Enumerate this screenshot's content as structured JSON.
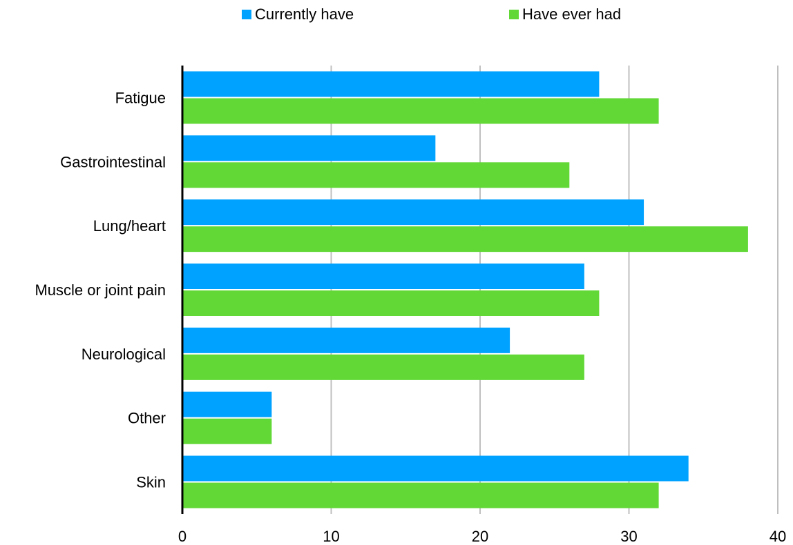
{
  "chart_data": {
    "type": "bar",
    "orientation": "horizontal",
    "title": "",
    "xlabel": "",
    "ylabel": "",
    "categories": [
      "Fatigue",
      "Gastrointestinal",
      "Lung/heart",
      "Muscle or joint pain",
      "Neurological",
      "Other",
      "Skin"
    ],
    "series": [
      {
        "name": "Currently have",
        "color": "#00a2ff",
        "values": [
          28,
          17,
          31,
          27,
          22,
          6,
          34
        ]
      },
      {
        "name": "Have ever had",
        "color": "#61d836",
        "values": [
          32,
          26,
          38,
          28,
          27,
          6,
          32
        ]
      }
    ],
    "xlim": [
      0,
      40
    ],
    "xticks": [
      0,
      10,
      20,
      30,
      40
    ],
    "grid": "vertical",
    "legend_position": "top"
  }
}
